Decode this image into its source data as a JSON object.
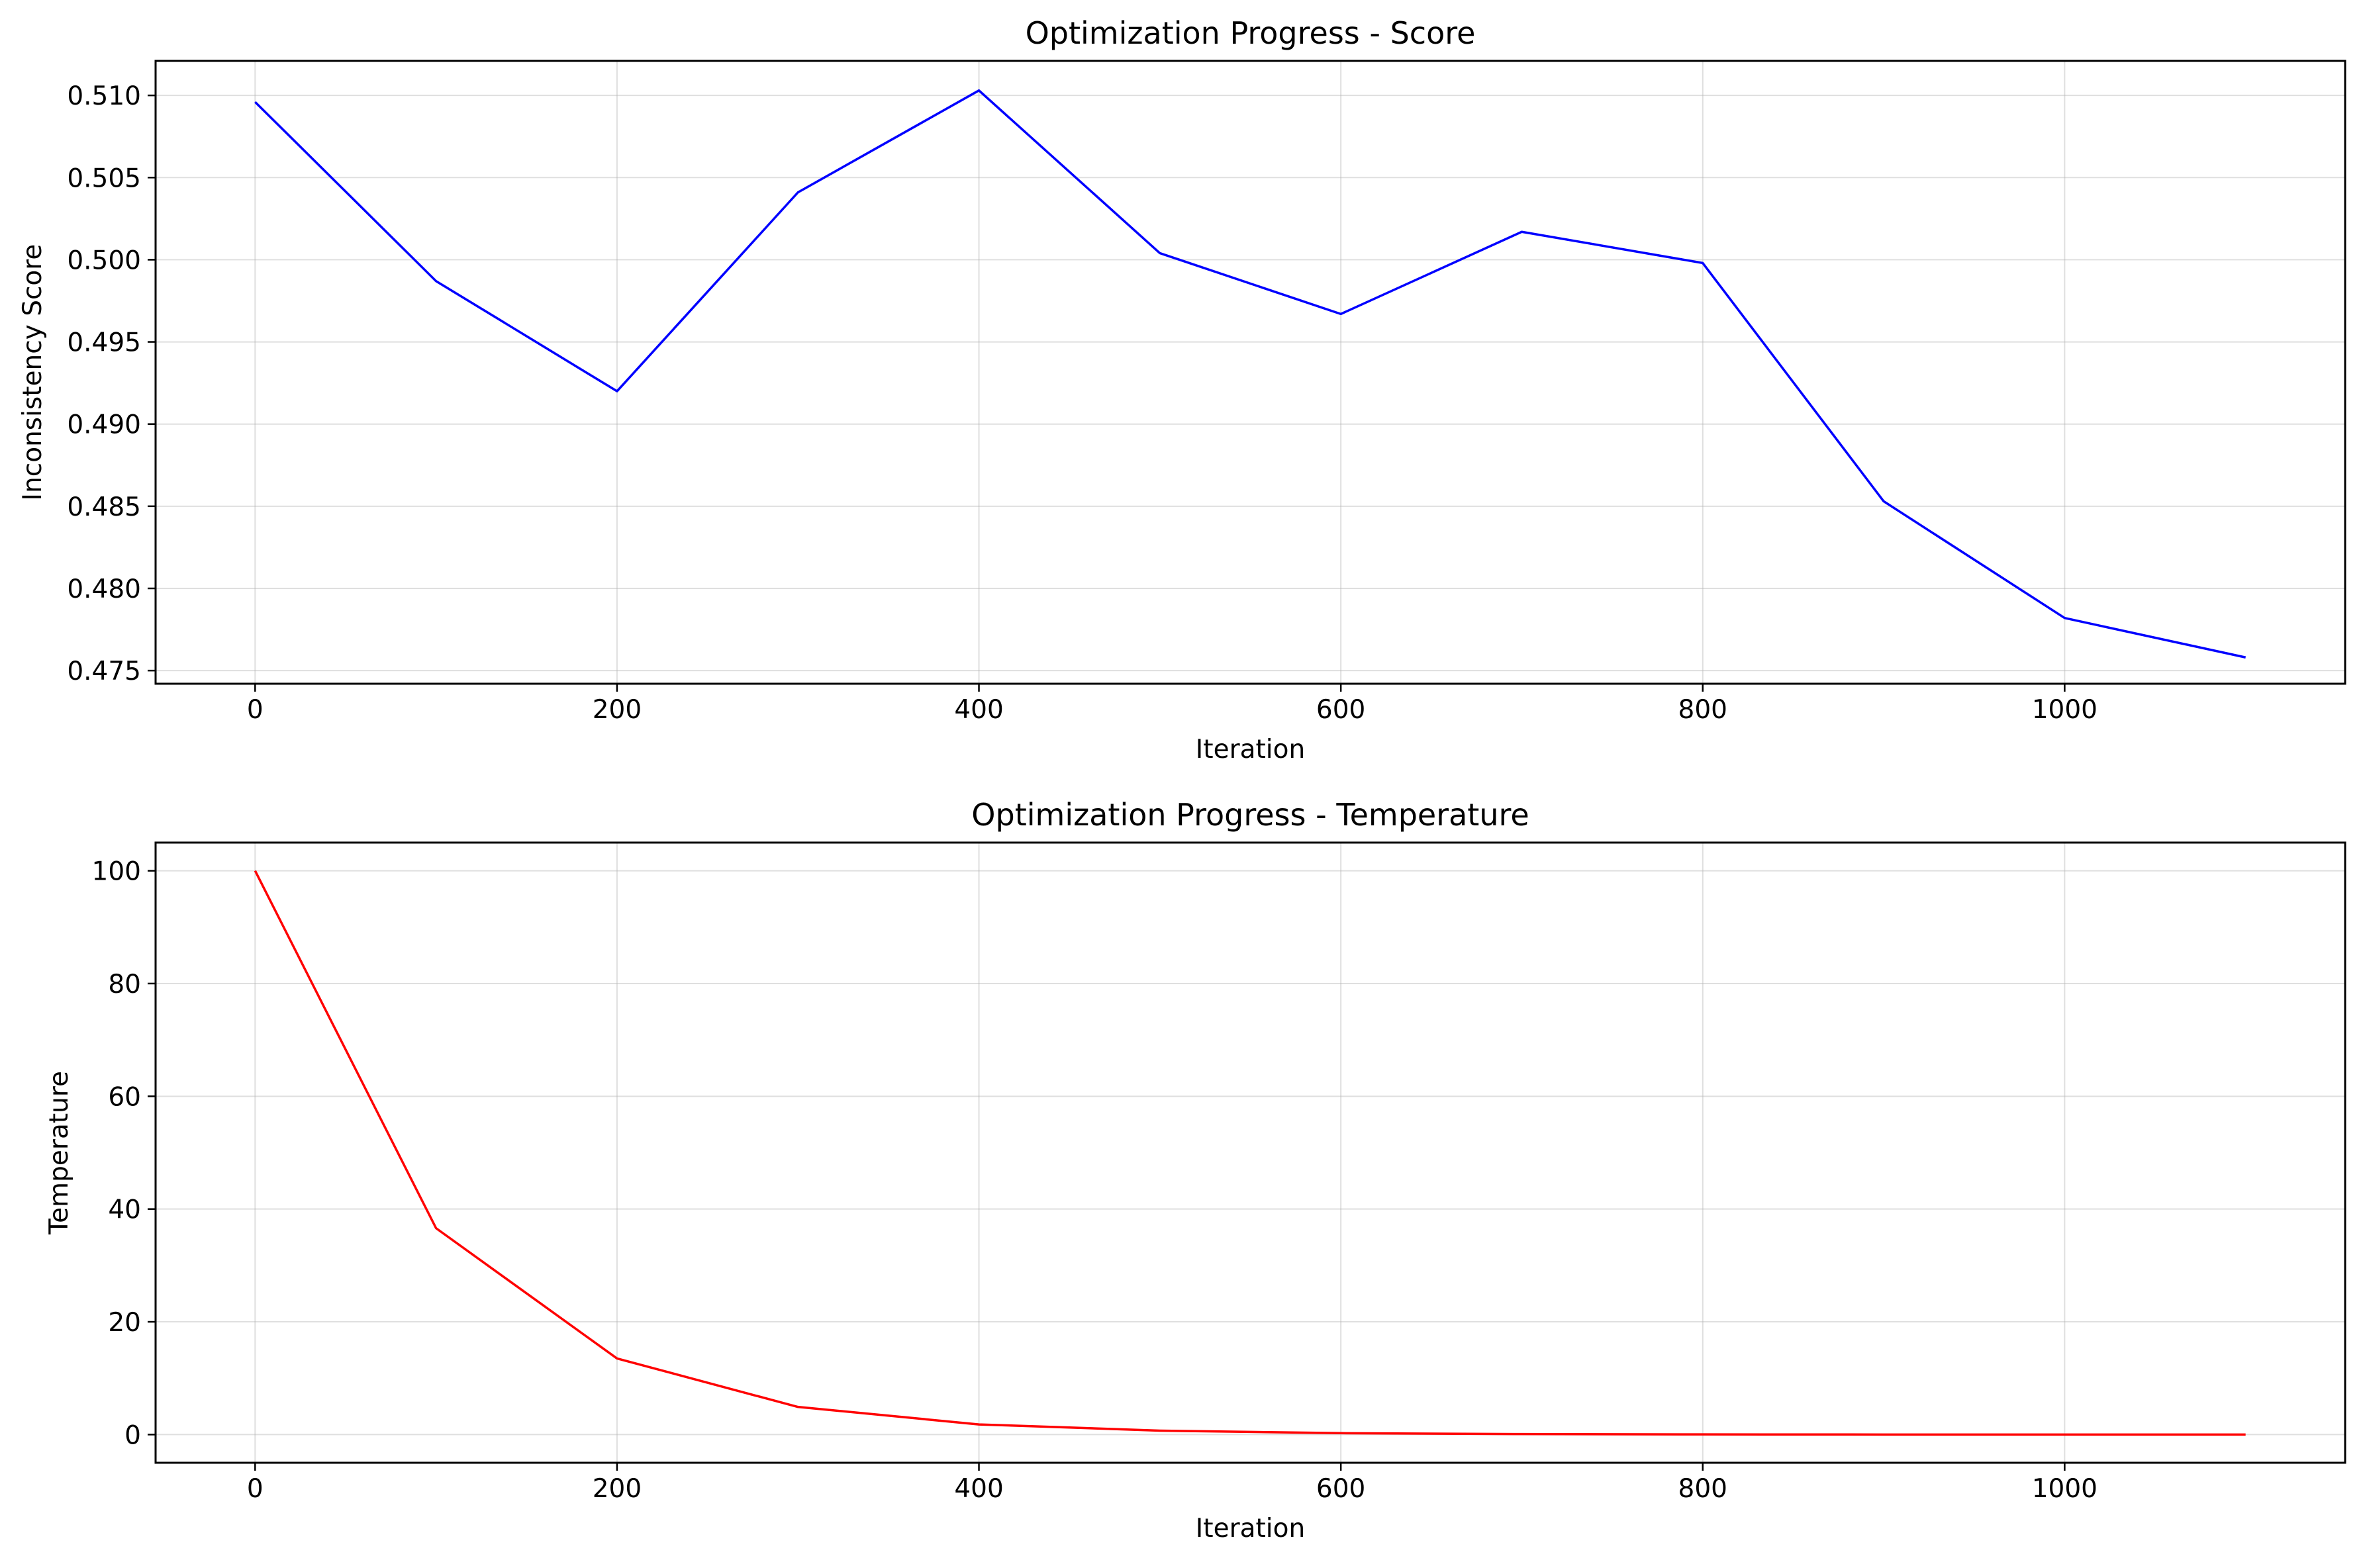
{
  "chart_data": [
    {
      "type": "line",
      "title": "Optimization Progress - Score",
      "xlabel": "Iteration",
      "ylabel": "Inconsistency Score",
      "xlim": [
        -55,
        1155
      ],
      "ylim": [
        0.4742,
        0.5121
      ],
      "xticks": [
        0,
        200,
        400,
        600,
        800,
        1000
      ],
      "yticks": [
        0.475,
        0.48,
        0.485,
        0.49,
        0.495,
        0.5,
        0.505,
        0.51
      ],
      "ytick_labels": [
        "0.475",
        "0.480",
        "0.485",
        "0.490",
        "0.495",
        "0.500",
        "0.505",
        "0.510"
      ],
      "grid": true,
      "series": [
        {
          "color": "#0000ff",
          "x": [
            0,
            100,
            200,
            300,
            400,
            500,
            600,
            700,
            800,
            900,
            1000,
            1100
          ],
          "y": [
            0.5096,
            0.4987,
            0.492,
            0.5041,
            0.5103,
            0.5004,
            0.4967,
            0.5017,
            0.4998,
            0.4853,
            0.4782,
            0.4758
          ]
        }
      ]
    },
    {
      "type": "line",
      "title": "Optimization Progress - Temperature",
      "xlabel": "Iteration",
      "ylabel": "Temperature",
      "xlim": [
        -55,
        1155
      ],
      "ylim": [
        -5,
        105
      ],
      "xticks": [
        0,
        200,
        400,
        600,
        800,
        1000
      ],
      "yticks": [
        0,
        20,
        40,
        60,
        80,
        100
      ],
      "ytick_labels": [
        "0",
        "20",
        "40",
        "60",
        "80",
        "100"
      ],
      "grid": true,
      "series": [
        {
          "color": "#ff0000",
          "x": [
            0,
            100,
            200,
            300,
            400,
            500,
            600,
            700,
            800,
            900,
            1000,
            1100
          ],
          "y": [
            100,
            36.6,
            13.5,
            4.9,
            1.8,
            0.7,
            0.25,
            0.09,
            0.03,
            0.01,
            0.005,
            0.002
          ]
        }
      ]
    }
  ]
}
